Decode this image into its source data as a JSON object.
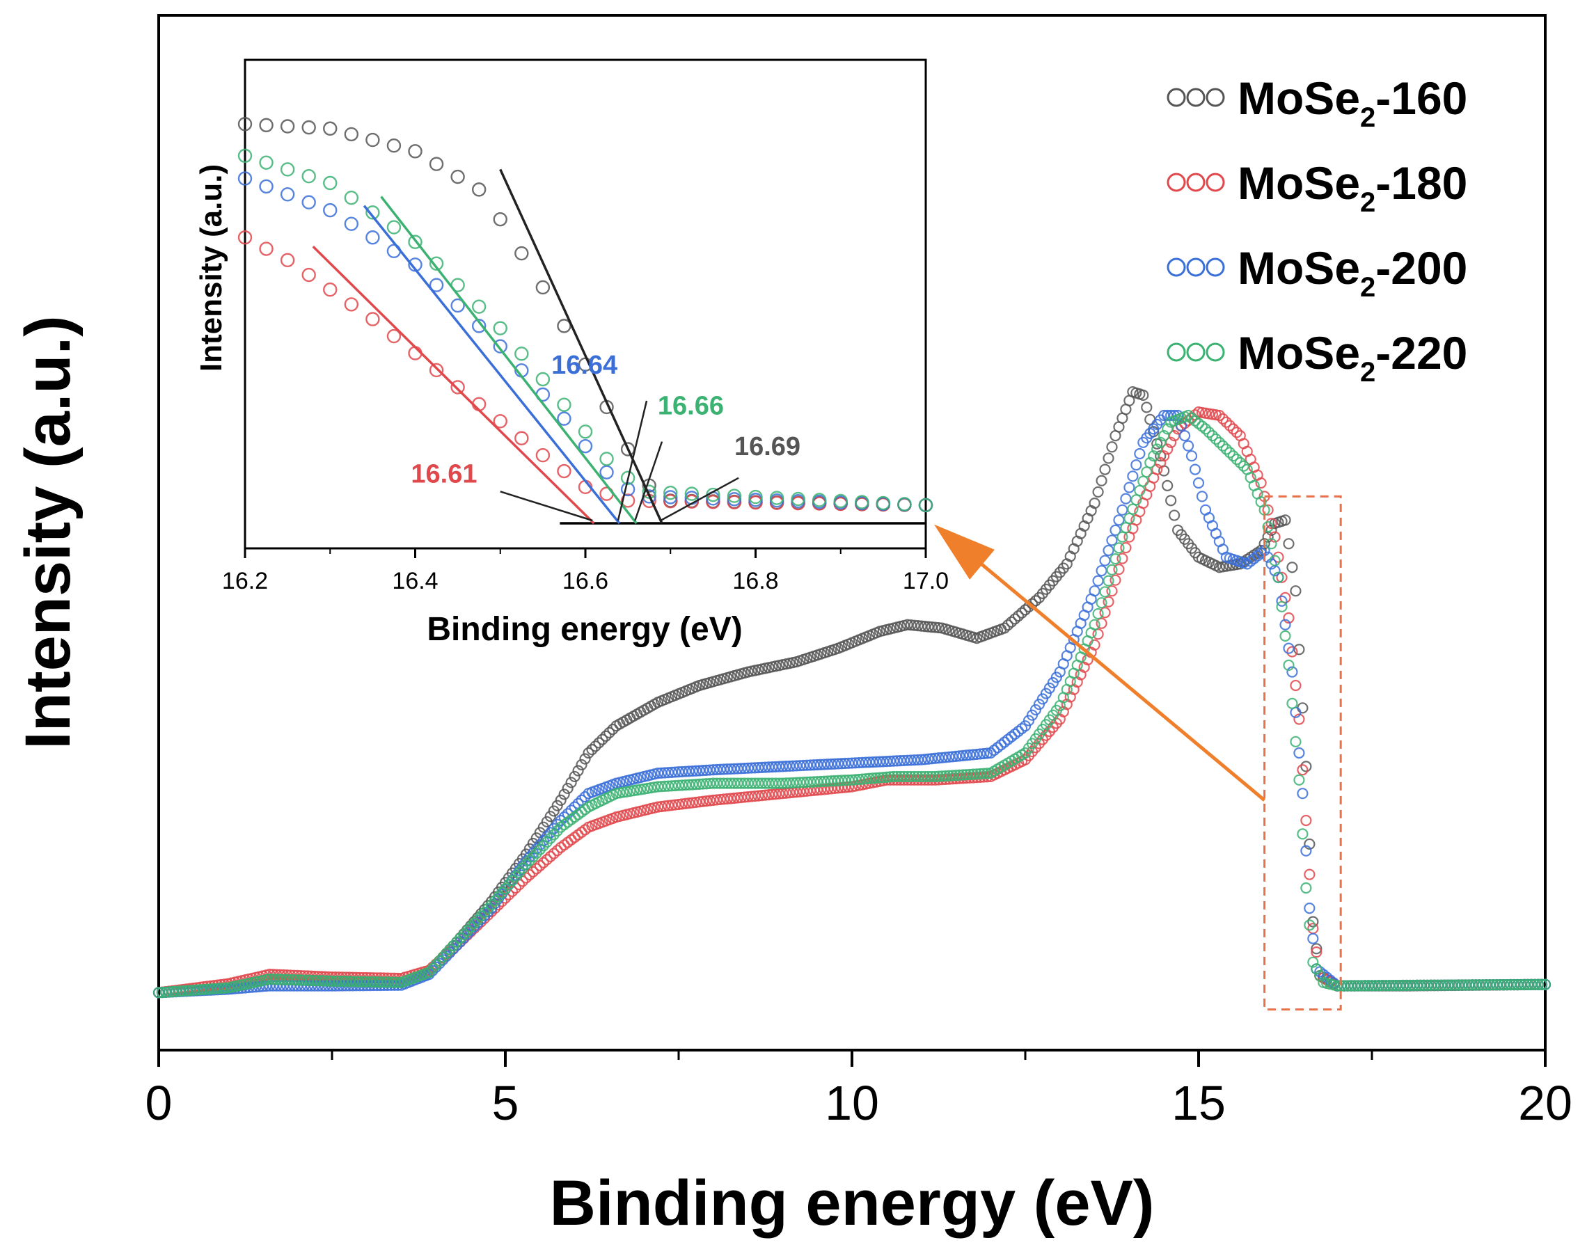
{
  "chart_data": [
    {
      "type": "scatter",
      "role": "main",
      "title": "",
      "xlabel": "Binding energy (eV)",
      "ylabel": "Intensity (a.u.)",
      "xlim": [
        0,
        20
      ],
      "ylim": [
        0,
        1
      ],
      "x_ticks": [
        0,
        5,
        10,
        15,
        20
      ],
      "x_tick_labels": [
        "0",
        "5",
        "10",
        "15",
        "20"
      ],
      "legend_position": "top-right",
      "series": [
        {
          "name": "MoSe2-160",
          "legend_main": "MoSe",
          "legend_sub": "2",
          "legend_suffix": "-160",
          "color": "#555555",
          "points": [
            [
              0,
              0.045
            ],
            [
              1,
              0.052
            ],
            [
              1.6,
              0.065
            ],
            [
              2.5,
              0.062
            ],
            [
              3.5,
              0.06
            ],
            [
              3.9,
              0.075
            ],
            [
              4.3,
              0.12
            ],
            [
              4.8,
              0.18
            ],
            [
              5.3,
              0.25
            ],
            [
              5.8,
              0.33
            ],
            [
              6.2,
              0.4
            ],
            [
              6.6,
              0.44
            ],
            [
              7.2,
              0.475
            ],
            [
              7.8,
              0.5
            ],
            [
              8.5,
              0.52
            ],
            [
              9.2,
              0.535
            ],
            [
              9.8,
              0.555
            ],
            [
              10.4,
              0.58
            ],
            [
              10.8,
              0.59
            ],
            [
              11.3,
              0.585
            ],
            [
              11.8,
              0.57
            ],
            [
              12.2,
              0.585
            ],
            [
              12.7,
              0.63
            ],
            [
              13.1,
              0.68
            ],
            [
              13.5,
              0.77
            ],
            [
              13.8,
              0.87
            ],
            [
              14.05,
              0.935
            ],
            [
              14.2,
              0.93
            ],
            [
              14.45,
              0.84
            ],
            [
              14.7,
              0.73
            ],
            [
              15.0,
              0.69
            ],
            [
              15.3,
              0.675
            ],
            [
              15.6,
              0.68
            ],
            [
              15.9,
              0.7
            ],
            [
              16.1,
              0.74
            ],
            [
              16.25,
              0.745
            ],
            [
              16.4,
              0.64
            ],
            [
              16.55,
              0.38
            ],
            [
              16.65,
              0.15
            ],
            [
              16.75,
              0.07
            ],
            [
              17.0,
              0.055
            ],
            [
              18,
              0.055
            ],
            [
              20,
              0.057
            ]
          ]
        },
        {
          "name": "MoSe2-180",
          "legend_main": "MoSe",
          "legend_sub": "2",
          "legend_suffix": "-180",
          "color": "#e0484c",
          "points": [
            [
              0,
              0.045
            ],
            [
              1,
              0.058
            ],
            [
              1.6,
              0.072
            ],
            [
              2.5,
              0.068
            ],
            [
              3.5,
              0.066
            ],
            [
              3.9,
              0.078
            ],
            [
              4.3,
              0.115
            ],
            [
              4.8,
              0.165
            ],
            [
              5.3,
              0.215
            ],
            [
              5.8,
              0.26
            ],
            [
              6.2,
              0.29
            ],
            [
              6.6,
              0.305
            ],
            [
              7.2,
              0.32
            ],
            [
              8,
              0.33
            ],
            [
              9,
              0.34
            ],
            [
              10,
              0.35
            ],
            [
              10.5,
              0.36
            ],
            [
              11.2,
              0.36
            ],
            [
              12.0,
              0.365
            ],
            [
              12.5,
              0.39
            ],
            [
              13.0,
              0.45
            ],
            [
              13.5,
              0.56
            ],
            [
              14.0,
              0.72
            ],
            [
              14.4,
              0.82
            ],
            [
              14.7,
              0.88
            ],
            [
              15.0,
              0.905
            ],
            [
              15.3,
              0.9
            ],
            [
              15.6,
              0.87
            ],
            [
              15.9,
              0.8
            ],
            [
              16.1,
              0.72
            ],
            [
              16.3,
              0.6
            ],
            [
              16.45,
              0.45
            ],
            [
              16.55,
              0.3
            ],
            [
              16.65,
              0.14
            ],
            [
              16.75,
              0.07
            ],
            [
              17.0,
              0.055
            ],
            [
              20,
              0.057
            ]
          ]
        },
        {
          "name": "MoSe2-200",
          "legend_main": "MoSe",
          "legend_sub": "2",
          "legend_suffix": "-200",
          "color": "#3a6fd8",
          "points": [
            [
              0,
              0.045
            ],
            [
              1,
              0.05
            ],
            [
              1.6,
              0.055
            ],
            [
              2.5,
              0.055
            ],
            [
              3.5,
              0.056
            ],
            [
              3.9,
              0.072
            ],
            [
              4.3,
              0.115
            ],
            [
              4.8,
              0.17
            ],
            [
              5.3,
              0.24
            ],
            [
              5.8,
              0.3
            ],
            [
              6.2,
              0.34
            ],
            [
              6.6,
              0.355
            ],
            [
              7.2,
              0.37
            ],
            [
              8,
              0.375
            ],
            [
              9,
              0.38
            ],
            [
              10,
              0.385
            ],
            [
              11,
              0.39
            ],
            [
              12.0,
              0.4
            ],
            [
              12.5,
              0.44
            ],
            [
              13.0,
              0.52
            ],
            [
              13.5,
              0.64
            ],
            [
              13.9,
              0.76
            ],
            [
              14.2,
              0.86
            ],
            [
              14.5,
              0.9
            ],
            [
              14.7,
              0.9
            ],
            [
              14.9,
              0.84
            ],
            [
              15.1,
              0.76
            ],
            [
              15.4,
              0.69
            ],
            [
              15.7,
              0.68
            ],
            [
              15.95,
              0.7
            ],
            [
              16.15,
              0.66
            ],
            [
              16.35,
              0.52
            ],
            [
              16.5,
              0.34
            ],
            [
              16.6,
              0.17
            ],
            [
              16.7,
              0.08
            ],
            [
              17.0,
              0.055
            ],
            [
              20,
              0.057
            ]
          ]
        },
        {
          "name": "MoSe2-220",
          "legend_main": "MoSe",
          "legend_sub": "2",
          "legend_suffix": "-220",
          "color": "#3bb272",
          "points": [
            [
              0,
              0.045
            ],
            [
              1,
              0.052
            ],
            [
              1.6,
              0.065
            ],
            [
              2.5,
              0.062
            ],
            [
              3.5,
              0.06
            ],
            [
              3.9,
              0.075
            ],
            [
              4.3,
              0.12
            ],
            [
              4.8,
              0.175
            ],
            [
              5.3,
              0.235
            ],
            [
              5.8,
              0.29
            ],
            [
              6.2,
              0.32
            ],
            [
              6.6,
              0.34
            ],
            [
              7.2,
              0.35
            ],
            [
              8,
              0.355
            ],
            [
              9,
              0.355
            ],
            [
              10,
              0.36
            ],
            [
              10.6,
              0.365
            ],
            [
              11.2,
              0.365
            ],
            [
              12.0,
              0.37
            ],
            [
              12.5,
              0.4
            ],
            [
              13.0,
              0.47
            ],
            [
              13.5,
              0.59
            ],
            [
              13.9,
              0.72
            ],
            [
              14.3,
              0.83
            ],
            [
              14.6,
              0.89
            ],
            [
              14.85,
              0.9
            ],
            [
              15.1,
              0.88
            ],
            [
              15.4,
              0.85
            ],
            [
              15.7,
              0.82
            ],
            [
              15.95,
              0.76
            ],
            [
              16.15,
              0.66
            ],
            [
              16.3,
              0.53
            ],
            [
              16.45,
              0.36
            ],
            [
              16.55,
              0.2
            ],
            [
              16.65,
              0.09
            ],
            [
              16.8,
              0.06
            ],
            [
              17.0,
              0.055
            ],
            [
              20,
              0.057
            ]
          ]
        }
      ],
      "annotations": [
        {
          "type": "dashed-box",
          "x_range": [
            15.95,
            17.05
          ],
          "y_range": [
            0.02,
            0.78
          ],
          "color": "#e8714a"
        },
        {
          "type": "arrow",
          "from": [
            15.95,
            0.33
          ],
          "to": [
            11.4,
            0.72
          ],
          "color": "#f07f2b"
        }
      ]
    },
    {
      "type": "scatter",
      "role": "inset",
      "title": "",
      "xlabel": "Binding energy (eV)",
      "ylabel": "Intensity (a.u.)",
      "xlim": [
        16.2,
        17.0
      ],
      "ylim": [
        0,
        1
      ],
      "x_ticks": [
        16.2,
        16.4,
        16.6,
        16.8,
        17.0
      ],
      "x_tick_labels": [
        "16.2",
        "16.4",
        "16.6",
        "16.8",
        "17.0"
      ],
      "series": [
        {
          "name": "MoSe2-160",
          "color": "#555555",
          "points": [
            [
              16.2,
              0.88
            ],
            [
              16.3,
              0.87
            ],
            [
              16.4,
              0.82
            ],
            [
              16.48,
              0.73
            ],
            [
              16.55,
              0.52
            ],
            [
              16.6,
              0.35
            ],
            [
              16.64,
              0.2
            ],
            [
              16.67,
              0.09
            ],
            [
              16.7,
              0.05
            ],
            [
              17.0,
              0.04
            ]
          ],
          "fit_line": {
            "x": [
              16.5,
              16.69
            ],
            "y": [
              0.78,
              0.0
            ]
          },
          "onset": "16.69"
        },
        {
          "name": "MoSe2-180",
          "color": "#e0484c",
          "points": [
            [
              16.2,
              0.63
            ],
            [
              16.25,
              0.58
            ],
            [
              16.35,
              0.45
            ],
            [
              16.45,
              0.3
            ],
            [
              16.55,
              0.15
            ],
            [
              16.6,
              0.08
            ],
            [
              16.65,
              0.05
            ],
            [
              17.0,
              0.04
            ]
          ],
          "fit_line": {
            "x": [
              16.28,
              16.61
            ],
            "y": [
              0.61,
              0.0
            ]
          },
          "onset": "16.61"
        },
        {
          "name": "MoSe2-200",
          "color": "#3a6fd8",
          "points": [
            [
              16.2,
              0.76
            ],
            [
              16.3,
              0.69
            ],
            [
              16.4,
              0.57
            ],
            [
              16.5,
              0.39
            ],
            [
              16.58,
              0.22
            ],
            [
              16.62,
              0.12
            ],
            [
              16.66,
              0.06
            ],
            [
              17.0,
              0.04
            ]
          ],
          "fit_line": {
            "x": [
              16.34,
              16.64
            ],
            "y": [
              0.7,
              0.0
            ]
          },
          "onset": "16.64"
        },
        {
          "name": "MoSe2-220",
          "color": "#3bb272",
          "points": [
            [
              16.2,
              0.81
            ],
            [
              16.3,
              0.75
            ],
            [
              16.4,
              0.62
            ],
            [
              16.5,
              0.43
            ],
            [
              16.58,
              0.25
            ],
            [
              16.63,
              0.13
            ],
            [
              16.67,
              0.07
            ],
            [
              17.0,
              0.04
            ]
          ],
          "fit_line": {
            "x": [
              16.36,
              16.66
            ],
            "y": [
              0.72,
              0.0
            ]
          },
          "onset": "16.66"
        }
      ],
      "baseline": {
        "x": [
          16.57,
          17.0
        ],
        "y": [
          0.0,
          0.0
        ]
      },
      "labels": [
        {
          "text": "16.61",
          "color": "#e0484c"
        },
        {
          "text": "16.64",
          "color": "#3a6fd8"
        },
        {
          "text": "16.66",
          "color": "#3bb272"
        },
        {
          "text": "16.69",
          "color": "#555555"
        }
      ]
    }
  ]
}
